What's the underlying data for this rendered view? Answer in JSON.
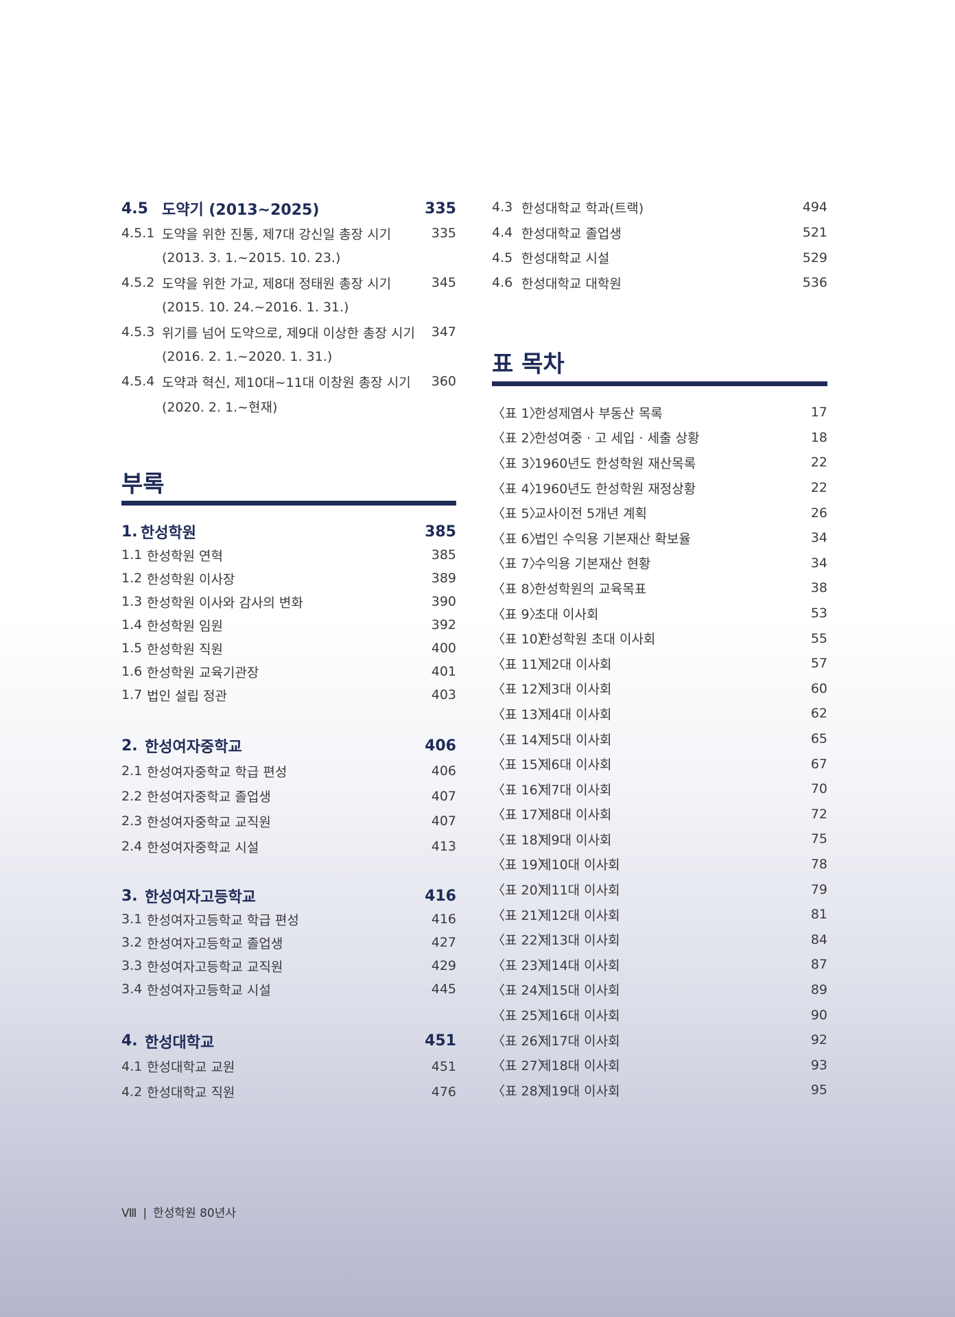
{
  "left_top": {
    "heading": {
      "number": "4.5",
      "title": "도약기 (2013~2025)",
      "page": "335"
    },
    "items": [
      {
        "number": "4.5.1",
        "title": "도약을 위한 진통, 제7대 강신일 총장 시기",
        "page": "335",
        "dates": "(2013. 3. 1.~2015. 10. 23.)"
      },
      {
        "number": "4.5.2",
        "title": "도약을 위한 가교, 제8대 정태원 총장 시기",
        "page": "345",
        "dates": "(2015. 10. 24.~2016. 1. 31.)"
      },
      {
        "number": "4.5.3",
        "title": "위기를 넘어 도약으로, 제9대 이상한 총장 시기",
        "page": "347",
        "dates": "(2016. 2. 1.~2020. 1. 31.)"
      },
      {
        "number": "4.5.4",
        "title": "도약과 혁신, 제10대~11대 이창원 총장 시기",
        "page": "360",
        "dates": "(2020. 2. 1.~현재)"
      }
    ]
  },
  "appendix": {
    "title": "부록",
    "groups": [
      {
        "heading": {
          "number": "1.",
          "title": "한성학원",
          "page": "385"
        },
        "items": [
          {
            "number": "1.1",
            "title": "한성학원 연혁",
            "page": "385"
          },
          {
            "number": "1.2",
            "title": "한성학원 이사장",
            "page": "389"
          },
          {
            "number": "1.3",
            "title": "한성학원 이사와 감사의 변화",
            "page": "390"
          },
          {
            "number": "1.4",
            "title": "한성학원 임원",
            "page": "392"
          },
          {
            "number": "1.5",
            "title": "한성학원 직원",
            "page": "400"
          },
          {
            "number": "1.6",
            "title": "한성학원 교육기관장",
            "page": "401"
          },
          {
            "number": "1.7",
            "title": "법인 설립 정관",
            "page": "403"
          }
        ]
      },
      {
        "heading": {
          "number": "2.",
          "title": "한성여자중학교",
          "page": "406"
        },
        "items": [
          {
            "number": "2.1",
            "title": "한성여자중학교 학급 편성",
            "page": "406"
          },
          {
            "number": "2.2",
            "title": "한성여자중학교 졸업생",
            "page": "407"
          },
          {
            "number": "2.3",
            "title": "한성여자중학교 교직원",
            "page": "407"
          },
          {
            "number": "2.4",
            "title": "한성여자중학교 시설",
            "page": "413"
          }
        ]
      },
      {
        "heading": {
          "number": "3.",
          "title": "한성여자고등학교",
          "page": "416"
        },
        "items": [
          {
            "number": "3.1",
            "title": "한성여자고등학교 학급 편성",
            "page": "416"
          },
          {
            "number": "3.2",
            "title": "한성여자고등학교 졸업생",
            "page": "427"
          },
          {
            "number": "3.3",
            "title": "한성여자고등학교 교직원",
            "page": "429"
          },
          {
            "number": "3.4",
            "title": "한성여자고등학교 시설",
            "page": "445"
          }
        ]
      },
      {
        "heading": {
          "number": "4.",
          "title": "한성대학교",
          "page": "451"
        },
        "items": [
          {
            "number": "4.1",
            "title": "한성대학교 교원",
            "page": "451"
          },
          {
            "number": "4.2",
            "title": "한성대학교 직원",
            "page": "476"
          }
        ]
      }
    ],
    "continued": [
      {
        "number": "4.3",
        "title": "한성대학교 학과(트랙)",
        "page": "494"
      },
      {
        "number": "4.4",
        "title": "한성대학교 졸업생",
        "page": "521"
      },
      {
        "number": "4.5",
        "title": "한성대학교 시설",
        "page": "529"
      },
      {
        "number": "4.6",
        "title": "한성대학교 대학원",
        "page": "536"
      }
    ]
  },
  "tables": {
    "title": "표 목차",
    "items": [
      {
        "label": "〈표  1〉",
        "title": "한성제염사 부동산 목록",
        "page": "17"
      },
      {
        "label": "〈표  2〉",
        "title": "한성여중 · 고 세입 · 세출 상황",
        "page": "18"
      },
      {
        "label": "〈표  3〉",
        "title": "1960년도 한성학원 재산목록",
        "page": "22"
      },
      {
        "label": "〈표  4〉",
        "title": "1960년도 한성학원 재정상황",
        "page": "22"
      },
      {
        "label": "〈표  5〉",
        "title": "교사이전 5개년 계획",
        "page": "26"
      },
      {
        "label": "〈표  6〉",
        "title": "법인 수익용 기본재산 확보율",
        "page": "34"
      },
      {
        "label": "〈표  7〉",
        "title": "수익용 기본재산 현황",
        "page": "34"
      },
      {
        "label": "〈표  8〉",
        "title": "한성학원의 교육목표",
        "page": "38"
      },
      {
        "label": "〈표  9〉",
        "title": "초대 이사회",
        "page": "53"
      },
      {
        "label": "〈표 10〉",
        "title": "한성학원 초대 이사회",
        "page": "55"
      },
      {
        "label": "〈표 11〉",
        "title": "제2대 이사회",
        "page": "57"
      },
      {
        "label": "〈표 12〉",
        "title": "제3대 이사회",
        "page": "60"
      },
      {
        "label": "〈표 13〉",
        "title": "제4대 이사회",
        "page": "62"
      },
      {
        "label": "〈표 14〉",
        "title": "제5대 이사회",
        "page": "65"
      },
      {
        "label": "〈표 15〉",
        "title": "제6대 이사회",
        "page": "67"
      },
      {
        "label": "〈표 16〉",
        "title": "제7대 이사회",
        "page": "70"
      },
      {
        "label": "〈표 17〉",
        "title": "제8대 이사회",
        "page": "72"
      },
      {
        "label": "〈표 18〉",
        "title": "제9대 이사회",
        "page": "75"
      },
      {
        "label": "〈표 19〉",
        "title": "제10대 이사회",
        "page": "78"
      },
      {
        "label": "〈표 20〉",
        "title": "제11대 이사회",
        "page": "79"
      },
      {
        "label": "〈표 21〉",
        "title": "제12대 이사회",
        "page": "81"
      },
      {
        "label": "〈표 22〉",
        "title": "제13대 이사회",
        "page": "84"
      },
      {
        "label": "〈표 23〉",
        "title": "제14대 이사회",
        "page": "87"
      },
      {
        "label": "〈표 24〉",
        "title": "제15대 이사회",
        "page": "89"
      },
      {
        "label": "〈표 25〉",
        "title": "제16대 이사회",
        "page": "90"
      },
      {
        "label": "〈표 26〉",
        "title": "제17대 이사회",
        "page": "92"
      },
      {
        "label": "〈표 27〉",
        "title": "제18대 이사회",
        "page": "93"
      },
      {
        "label": "〈표 28〉",
        "title": "제19대 이사회",
        "page": "95"
      }
    ]
  },
  "footer": {
    "page_numeral": "Ⅷ",
    "separator": "|",
    "book_title": "한성학원 80년사"
  },
  "colors": {
    "accent": "#1e2b57",
    "text": "#3a3a3a"
  }
}
